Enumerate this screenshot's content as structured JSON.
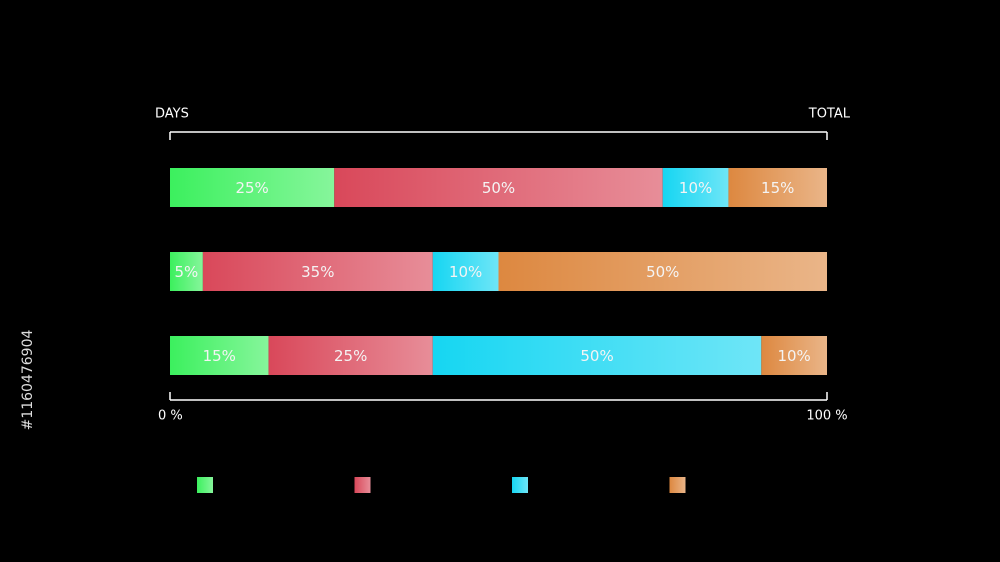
{
  "chart_data": {
    "type": "stacked_bar",
    "orientation": "horizontal",
    "top_left_label": "DAYS",
    "top_right_label": "TOTAL",
    "categories": [
      null,
      null,
      null
    ],
    "series": [
      {
        "color": "#3cf05e",
        "values": [
          25,
          5,
          15
        ],
        "value_labels": [
          "25%",
          "5%",
          "15%"
        ]
      },
      {
        "color": "#d9485a",
        "values": [
          50,
          35,
          25
        ],
        "value_labels": [
          "50%",
          "35%",
          "25%"
        ]
      },
      {
        "color": "#16d6f2",
        "values": [
          10,
          10,
          50
        ],
        "value_labels": [
          "10%",
          "10%",
          "50%"
        ]
      },
      {
        "color": "#dd8840",
        "values": [
          15,
          50,
          10
        ],
        "value_labels": [
          "15%",
          "50%",
          "10%"
        ]
      }
    ],
    "xlim": [
      0,
      100
    ],
    "xticks": [
      {
        "value": 0,
        "label": "0 %"
      },
      {
        "value": 100,
        "label": "100 %"
      }
    ],
    "watermark_id": "#1160476904"
  }
}
